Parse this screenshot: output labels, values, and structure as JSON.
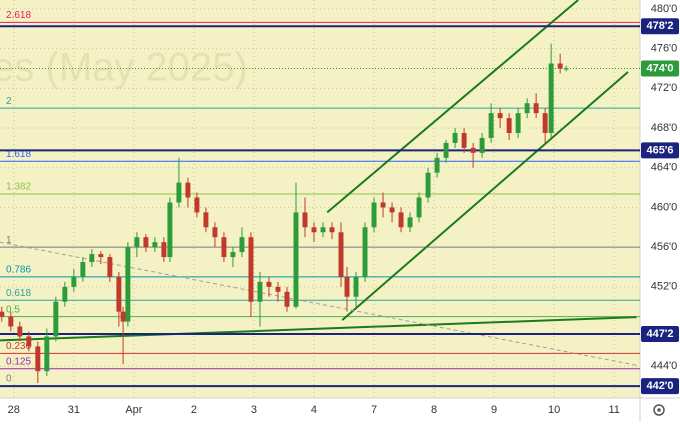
{
  "chart_data": {
    "type": "candlestick",
    "watermark": "es (May 2025)",
    "xlim": [
      -0.23,
      10.43
    ],
    "ylim": [
      440.8,
      480.9
    ],
    "xticks": [
      {
        "value": 0,
        "label": "28"
      },
      {
        "value": 1,
        "label": "31"
      },
      {
        "value": 2,
        "label": "Apr"
      },
      {
        "value": 3,
        "label": "2"
      },
      {
        "value": 4,
        "label": "3"
      },
      {
        "value": 5,
        "label": "4"
      },
      {
        "value": 6,
        "label": "7"
      },
      {
        "value": 7,
        "label": "8"
      },
      {
        "value": 8,
        "label": "9"
      },
      {
        "value": 9,
        "label": "10"
      },
      {
        "value": 10,
        "label": "11"
      }
    ],
    "yticks": [
      {
        "value": 444,
        "label": "444'0"
      },
      {
        "value": 452,
        "label": "452'0"
      },
      {
        "value": 456,
        "label": "456'0"
      },
      {
        "value": 460,
        "label": "460'0"
      },
      {
        "value": 464,
        "label": "464'0"
      },
      {
        "value": 468,
        "label": "468'0"
      },
      {
        "value": 472,
        "label": "472'0"
      },
      {
        "value": 476,
        "label": "476'0"
      },
      {
        "value": 480,
        "label": "480'0"
      }
    ],
    "up_color": "#2e9b3a",
    "down_color": "#c0392b",
    "candles": [
      [
        -0.2,
        449.5,
        450,
        448.5,
        449
      ],
      [
        -0.05,
        449,
        449.5,
        447.5,
        448
      ],
      [
        0.1,
        448,
        448.5,
        446.5,
        447
      ],
      [
        0.25,
        447,
        447.5,
        445.5,
        446
      ],
      [
        0.4,
        446,
        446.5,
        442.3,
        443.5
      ],
      [
        0.55,
        443.5,
        447.8,
        443,
        447
      ],
      [
        0.7,
        447,
        451,
        446.5,
        450.5
      ],
      [
        0.85,
        450.5,
        452.5,
        450,
        452
      ],
      [
        1.0,
        452,
        453.8,
        451.5,
        453
      ],
      [
        1.15,
        453,
        455,
        452.5,
        454.5
      ],
      [
        1.3,
        454.5,
        455.8,
        454,
        455.3
      ],
      [
        1.45,
        455.3,
        455.6,
        454.3,
        455
      ],
      [
        1.6,
        455,
        455.3,
        452.5,
        453
      ],
      [
        1.75,
        453,
        453.5,
        448,
        449.5
      ],
      [
        1.82,
        449.5,
        450,
        444.2,
        448.5
      ],
      [
        1.9,
        448.5,
        456.5,
        448,
        456
      ],
      [
        2.05,
        456,
        457.5,
        455,
        457
      ],
      [
        2.2,
        457,
        457.3,
        455.5,
        456
      ],
      [
        2.35,
        456,
        457,
        455.5,
        456.5
      ],
      [
        2.5,
        456.5,
        457,
        454.5,
        455
      ],
      [
        2.6,
        455,
        461,
        454.5,
        460.5
      ],
      [
        2.75,
        460.5,
        465,
        460,
        462.5
      ],
      [
        2.9,
        462.5,
        463,
        460,
        461
      ],
      [
        3.05,
        461,
        461.5,
        459,
        459.5
      ],
      [
        3.2,
        459.5,
        460,
        457.5,
        458
      ],
      [
        3.35,
        458,
        458.5,
        456,
        457
      ],
      [
        3.5,
        457,
        457.5,
        454.5,
        455
      ],
      [
        3.65,
        455,
        456,
        454,
        455.5
      ],
      [
        3.8,
        455.5,
        458,
        455,
        457
      ],
      [
        3.95,
        457,
        457.5,
        449,
        450.5
      ],
      [
        4.1,
        450.5,
        453.5,
        448,
        452.5
      ],
      [
        4.25,
        452.5,
        453,
        451,
        452
      ],
      [
        4.4,
        452,
        452.5,
        450.5,
        451.5
      ],
      [
        4.55,
        451.5,
        452,
        449.5,
        450
      ],
      [
        4.7,
        450,
        462.5,
        449.8,
        459.5
      ],
      [
        4.85,
        459.5,
        461,
        457,
        458
      ],
      [
        5.0,
        458,
        458.5,
        456.5,
        457.5
      ],
      [
        5.15,
        457.5,
        458.5,
        457,
        458
      ],
      [
        5.3,
        458,
        458.5,
        456.8,
        457.5
      ],
      [
        5.45,
        457.5,
        458.5,
        452,
        453
      ],
      [
        5.55,
        453,
        454,
        449.5,
        451
      ],
      [
        5.7,
        451,
        453.5,
        450,
        453
      ],
      [
        5.85,
        453,
        458.5,
        452.5,
        458
      ],
      [
        6.0,
        458,
        461,
        457.5,
        460.5
      ],
      [
        6.15,
        460.5,
        461.5,
        459,
        460
      ],
      [
        6.3,
        460,
        460.5,
        458.5,
        459.5
      ],
      [
        6.45,
        459.5,
        460,
        457.5,
        458
      ],
      [
        6.6,
        458,
        459.5,
        457.5,
        459
      ],
      [
        6.75,
        459,
        461.5,
        458.5,
        461
      ],
      [
        6.9,
        461,
        464,
        460.5,
        463.5
      ],
      [
        7.05,
        463.5,
        465.5,
        463,
        465
      ],
      [
        7.2,
        465,
        466.8,
        464.5,
        466.5
      ],
      [
        7.35,
        466.5,
        468,
        466,
        467.5
      ],
      [
        7.5,
        467.5,
        468,
        465.5,
        466
      ],
      [
        7.65,
        466,
        466.5,
        464,
        465.5
      ],
      [
        7.8,
        465.5,
        467.5,
        465,
        467
      ],
      [
        7.95,
        467,
        470.5,
        466.5,
        469.5
      ],
      [
        8.1,
        469.5,
        470,
        468,
        469
      ],
      [
        8.25,
        469,
        469.5,
        466.8,
        467.5
      ],
      [
        8.4,
        467.5,
        470,
        467,
        469.5
      ],
      [
        8.55,
        469.5,
        471,
        469,
        470.5
      ],
      [
        8.7,
        470.5,
        471.5,
        469,
        469.5
      ],
      [
        8.85,
        469.5,
        470,
        466.5,
        467.5
      ],
      [
        8.95,
        467.5,
        476.5,
        467,
        474.5
      ],
      [
        9.1,
        474.5,
        475.5,
        473.5,
        474
      ],
      [
        9.2,
        474,
        474.3,
        473.7,
        474
      ]
    ],
    "fib_levels": [
      {
        "ratio": 0,
        "value": 442,
        "color": "#787b86"
      },
      {
        "ratio": 0.125,
        "value": 443.75,
        "color": "#9c27b0"
      },
      {
        "ratio": 0.236,
        "value": 445.3,
        "color": "#d32f2f"
      },
      {
        "ratio": 0.5,
        "value": 449,
        "color": "#4caf50"
      },
      {
        "ratio": 0.618,
        "value": 450.65,
        "color": "#26a69a"
      },
      {
        "ratio": 0.786,
        "value": 453,
        "color": "#0097a7"
      },
      {
        "ratio": 1,
        "value": 456,
        "color": "#787b86"
      },
      {
        "ratio": 1.382,
        "value": 461.35,
        "color": "#8bc34a"
      },
      {
        "ratio": 1.618,
        "value": 464.65,
        "color": "#2962ff"
      },
      {
        "ratio": 2,
        "value": 470,
        "color": "#26a69a"
      },
      {
        "ratio": 2.618,
        "value": 478.65,
        "color": "#e91e63"
      }
    ],
    "price_levels": [
      {
        "value": 478.25,
        "label": "478'2",
        "color": "#1a237e"
      },
      {
        "value": 474,
        "label": "474'0",
        "color": "#2e9b3a"
      },
      {
        "value": 465.75,
        "label": "465'6",
        "color": "#1a237e"
      },
      {
        "value": 447.25,
        "label": "447'2",
        "color": "#1a237e"
      },
      {
        "value": 442,
        "label": "442'0",
        "color": "#1a237e"
      }
    ],
    "trend_lines": [
      {
        "points": [
          [
            5.22,
            459.5
          ],
          [
            9.4,
            480.9
          ]
        ],
        "color": "#1b7a1b",
        "dashed": false
      },
      {
        "points": [
          [
            5.47,
            448.65
          ],
          [
            10.23,
            473.65
          ]
        ],
        "color": "#1b7a1b",
        "dashed": false
      },
      {
        "points": [
          [
            -0.23,
            446.6
          ],
          [
            10.37,
            448.95
          ]
        ],
        "color": "#1b7a1b",
        "dashed": false
      },
      {
        "points": [
          [
            -0.23,
            456.5
          ],
          [
            10.37,
            444.1
          ]
        ],
        "color": "#9e9e9e",
        "dashed": true
      }
    ]
  }
}
